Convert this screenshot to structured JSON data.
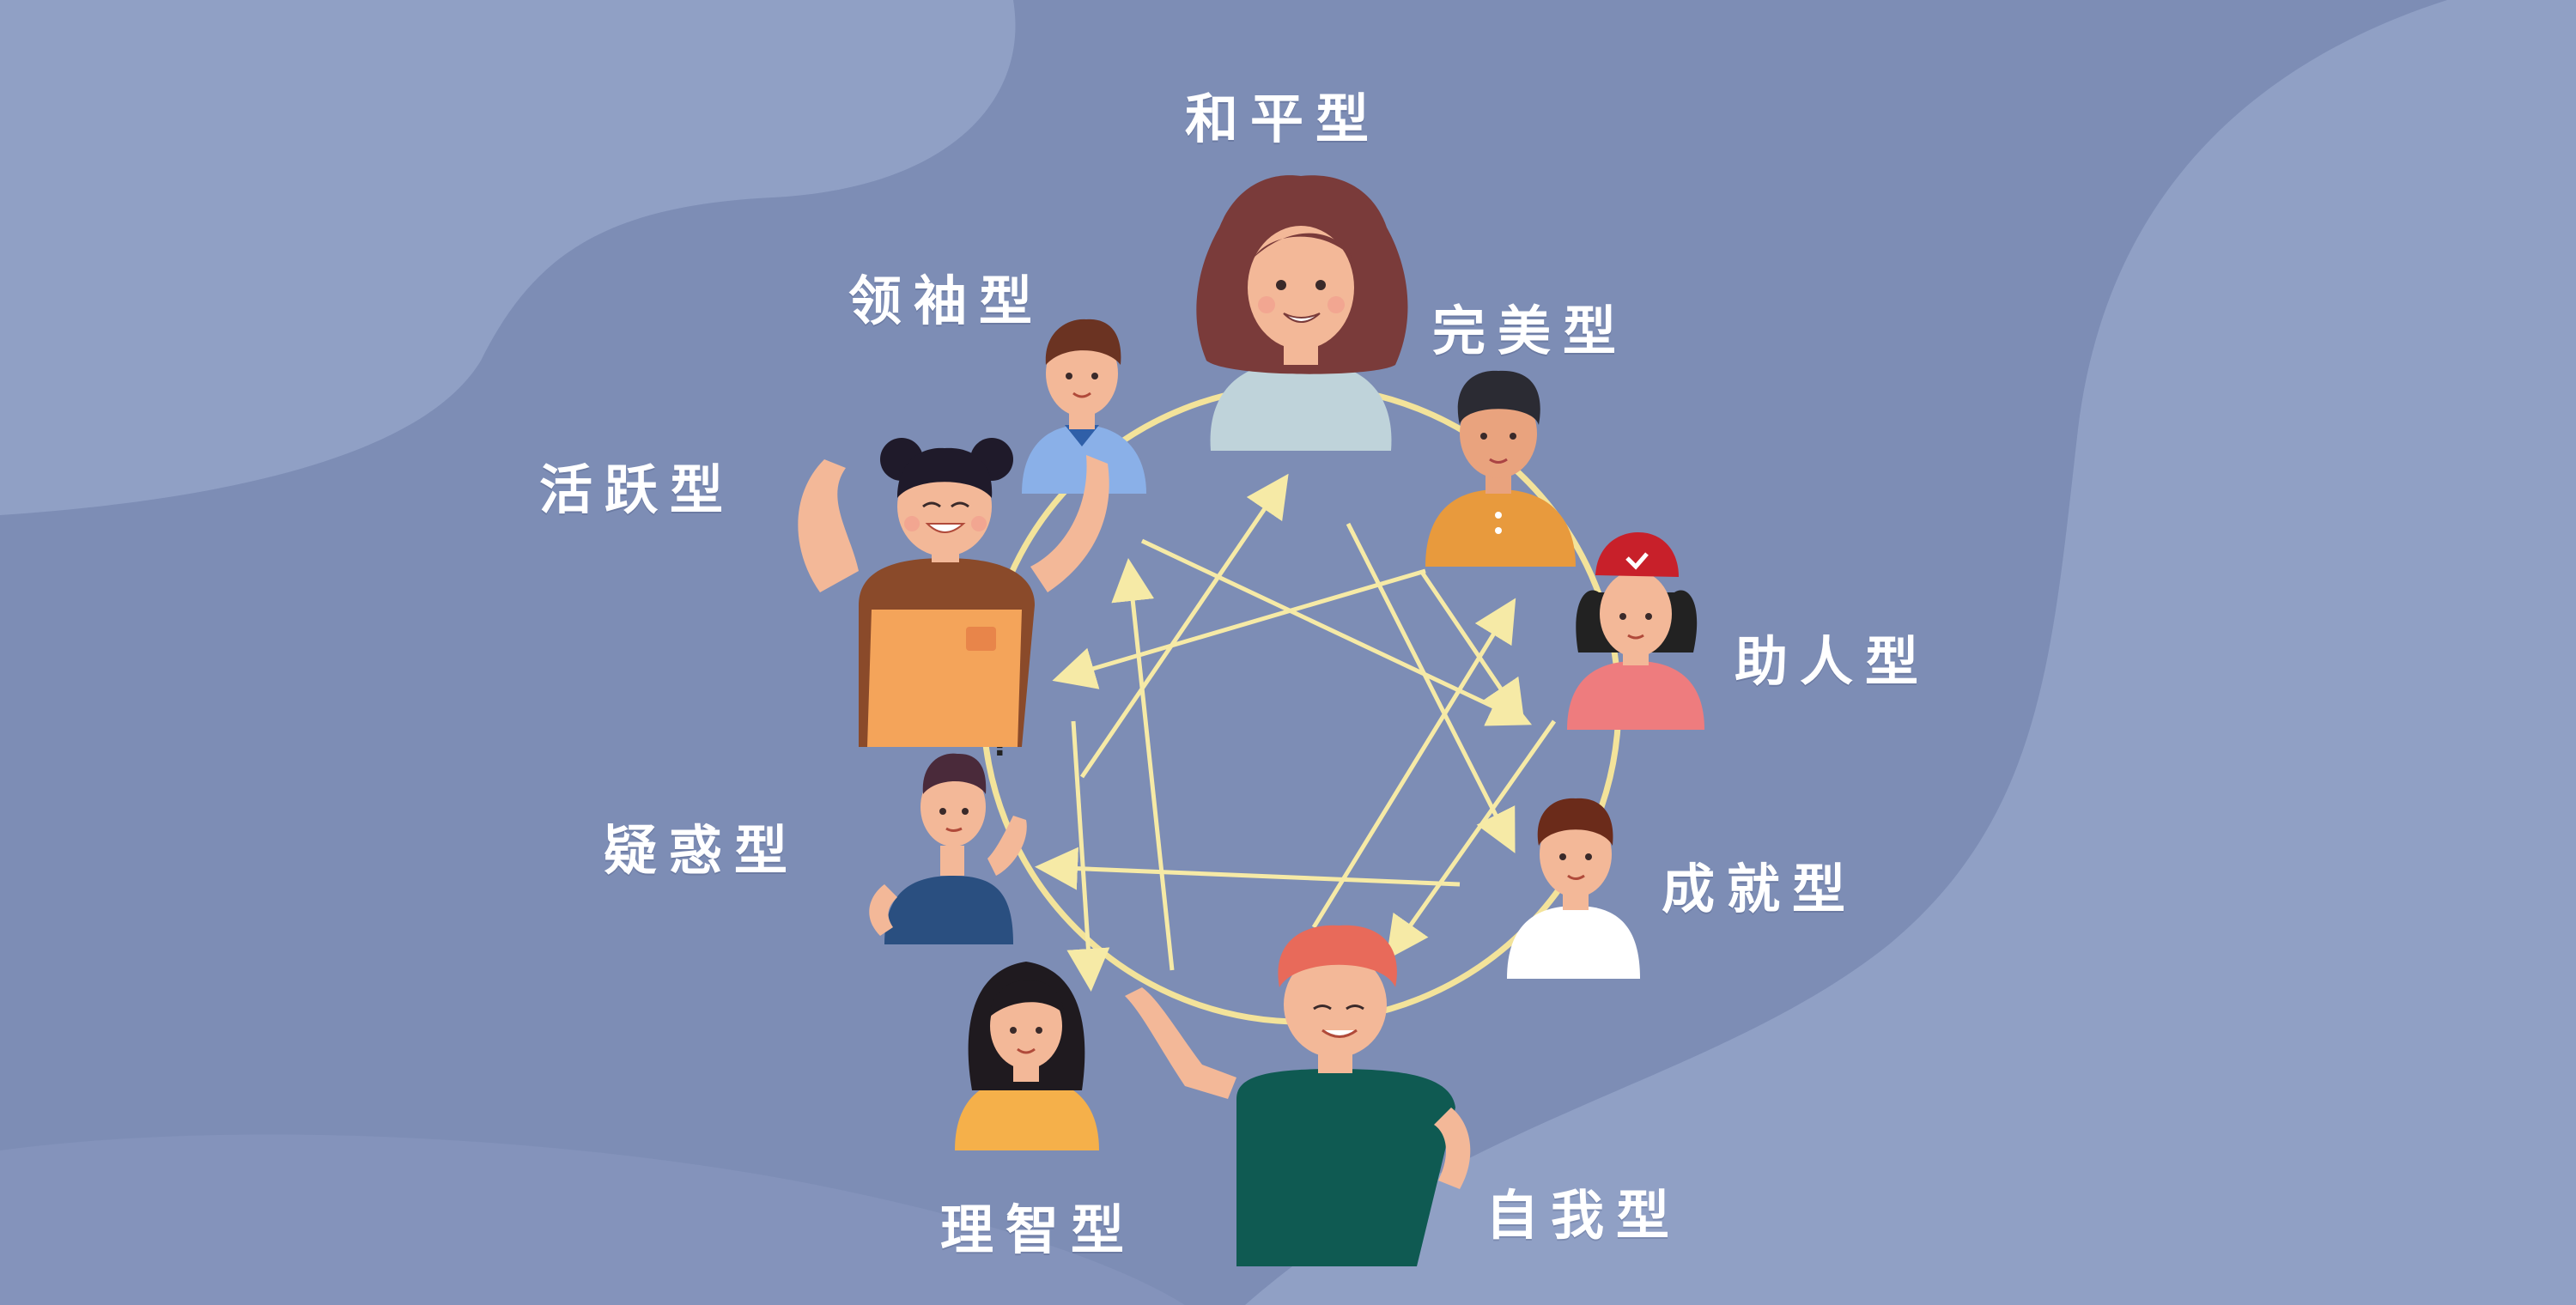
{
  "enneagram": {
    "types": [
      {
        "id": "peace",
        "label": "和平型"
      },
      {
        "id": "perfect",
        "label": "完美型"
      },
      {
        "id": "helper",
        "label": "助人型"
      },
      {
        "id": "achiever",
        "label": "成就型"
      },
      {
        "id": "self",
        "label": "自我型"
      },
      {
        "id": "intellect",
        "label": "理智型"
      },
      {
        "id": "doubt",
        "label": "疑惑型"
      },
      {
        "id": "active",
        "label": "活跃型"
      },
      {
        "id": "leader",
        "label": "领袖型"
      }
    ]
  },
  "colors": {
    "background": "#7d8db5",
    "blob_light": "#93a3c8",
    "circle": "#f3e39a",
    "arrows": "#f6eaa6",
    "label": "#ffffff"
  }
}
